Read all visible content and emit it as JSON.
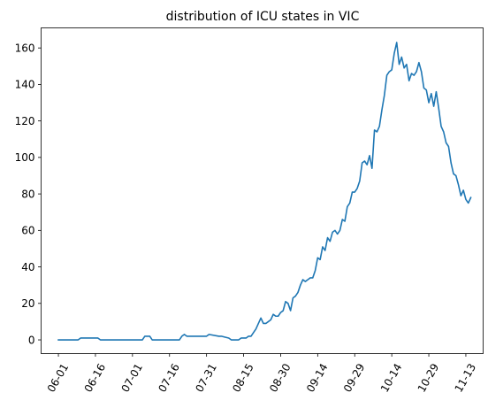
{
  "chart_data": {
    "type": "line",
    "title": "distribution of ICU states in VIC",
    "xlabel": "",
    "ylabel": "",
    "grid": false,
    "legend": "none",
    "ylim": [
      -7.5,
      171
    ],
    "xlim": [
      "2020-05-25",
      "2020-11-20"
    ],
    "y_ticks": [
      0,
      20,
      40,
      60,
      80,
      100,
      120,
      140,
      160
    ],
    "x_ticks": [
      {
        "date": "2020-06-01",
        "label": "06-01"
      },
      {
        "date": "2020-06-16",
        "label": "06-16"
      },
      {
        "date": "2020-07-01",
        "label": "07-01"
      },
      {
        "date": "2020-07-16",
        "label": "07-16"
      },
      {
        "date": "2020-07-31",
        "label": "07-31"
      },
      {
        "date": "2020-08-15",
        "label": "08-15"
      },
      {
        "date": "2020-08-30",
        "label": "08-30"
      },
      {
        "date": "2020-09-14",
        "label": "09-14"
      },
      {
        "date": "2020-09-29",
        "label": "09-29"
      },
      {
        "date": "2020-10-14",
        "label": "10-14"
      },
      {
        "date": "2020-10-29",
        "label": "10-29"
      },
      {
        "date": "2020-11-13",
        "label": "11-13"
      }
    ],
    "series": [
      {
        "color": "#1f77b4",
        "x": [
          "2020-06-01",
          "2020-06-09",
          "2020-06-10",
          "2020-06-11",
          "2020-06-17",
          "2020-06-18",
          "2020-06-20",
          "2020-07-05",
          "2020-07-06",
          "2020-07-08",
          "2020-07-09",
          "2020-07-20",
          "2020-07-21",
          "2020-07-22",
          "2020-07-23",
          "2020-07-30",
          "2020-07-31",
          "2020-08-01",
          "2020-08-05",
          "2020-08-06",
          "2020-08-09",
          "2020-08-10",
          "2020-08-12",
          "2020-08-13",
          "2020-08-14",
          "2020-08-15",
          "2020-08-16",
          "2020-08-17",
          "2020-08-18",
          "2020-08-19",
          "2020-08-20",
          "2020-08-21",
          "2020-08-22",
          "2020-08-23",
          "2020-08-24",
          "2020-08-25",
          "2020-08-26",
          "2020-08-27",
          "2020-08-28",
          "2020-08-29",
          "2020-08-30",
          "2020-08-31",
          "2020-09-01",
          "2020-09-02",
          "2020-09-03",
          "2020-09-04",
          "2020-09-05",
          "2020-09-06",
          "2020-09-07",
          "2020-09-08",
          "2020-09-09",
          "2020-09-10",
          "2020-09-11",
          "2020-09-12",
          "2020-09-13",
          "2020-09-14",
          "2020-09-15",
          "2020-09-16",
          "2020-09-17",
          "2020-09-18",
          "2020-09-19",
          "2020-09-20",
          "2020-09-21",
          "2020-09-22",
          "2020-09-23",
          "2020-09-24",
          "2020-09-25",
          "2020-09-26",
          "2020-09-27",
          "2020-09-28",
          "2020-09-29",
          "2020-09-30",
          "2020-10-01",
          "2020-10-02",
          "2020-10-03",
          "2020-10-04",
          "2020-10-05",
          "2020-10-06",
          "2020-10-07",
          "2020-10-08",
          "2020-10-09",
          "2020-10-10",
          "2020-10-11",
          "2020-10-12",
          "2020-10-13",
          "2020-10-14",
          "2020-10-15",
          "2020-10-16",
          "2020-10-17",
          "2020-10-18",
          "2020-10-19",
          "2020-10-20",
          "2020-10-21",
          "2020-10-22",
          "2020-10-23",
          "2020-10-24",
          "2020-10-25",
          "2020-10-26",
          "2020-10-27",
          "2020-10-28",
          "2020-10-29",
          "2020-10-30",
          "2020-10-31",
          "2020-11-01",
          "2020-11-02",
          "2020-11-03",
          "2020-11-04",
          "2020-11-05",
          "2020-11-06",
          "2020-11-07",
          "2020-11-08",
          "2020-11-09",
          "2020-11-10",
          "2020-11-11",
          "2020-11-12",
          "2020-11-13",
          "2020-11-14",
          "2020-11-15"
        ],
        "y": [
          0,
          0,
          1,
          1,
          1,
          0,
          0,
          0,
          2,
          2,
          0,
          0,
          2,
          3,
          2,
          2,
          2,
          3,
          2,
          2,
          1,
          0,
          0,
          0,
          1,
          1,
          1,
          2,
          2,
          4,
          6,
          9,
          12,
          9,
          9,
          10,
          11,
          14,
          13,
          13,
          15,
          16,
          21,
          20,
          16,
          23,
          24,
          26,
          30,
          33,
          32,
          33,
          34,
          34,
          38,
          45,
          44,
          51,
          49,
          56,
          54,
          59,
          60,
          58,
          60,
          66,
          65,
          73,
          75,
          81,
          81,
          83,
          87,
          97,
          98,
          96,
          101,
          94,
          115,
          114,
          117,
          126,
          134,
          145,
          147,
          148,
          157,
          163,
          151,
          155,
          149,
          151,
          142,
          146,
          145,
          147,
          152,
          147,
          138,
          137,
          130,
          135,
          128,
          136,
          127,
          117,
          114,
          108,
          106,
          97,
          91,
          90,
          85,
          79,
          82,
          77,
          75,
          78
        ]
      }
    ]
  }
}
